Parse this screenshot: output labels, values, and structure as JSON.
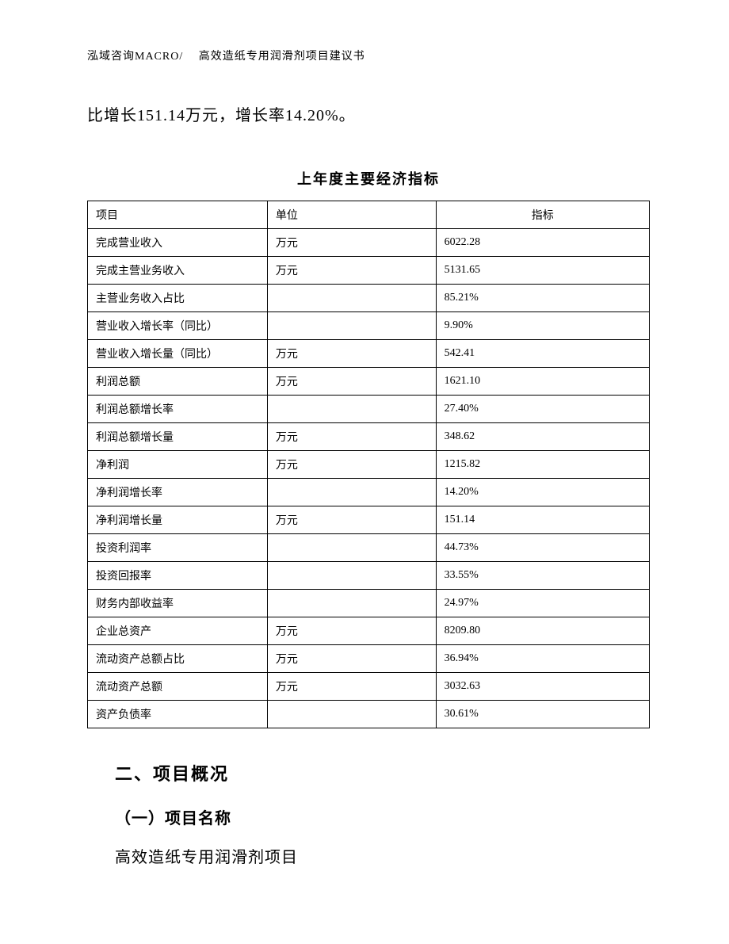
{
  "header": "泓域咨询MACRO/　 高效造纸专用润滑剂项目建议书",
  "intro_text": "比增长151.14万元，增长率14.20%。",
  "table": {
    "title": "上年度主要经济指标",
    "columns": [
      "项目",
      "单位",
      "指标"
    ],
    "rows": [
      [
        "完成营业收入",
        "万元",
        "6022.28"
      ],
      [
        "完成主营业务收入",
        "万元",
        "5131.65"
      ],
      [
        "主营业务收入占比",
        "",
        "85.21%"
      ],
      [
        "营业收入增长率（同比）",
        "",
        "9.90%"
      ],
      [
        "营业收入增长量（同比）",
        "万元",
        "542.41"
      ],
      [
        "利润总额",
        "万元",
        "1621.10"
      ],
      [
        "利润总额增长率",
        "",
        "27.40%"
      ],
      [
        "利润总额增长量",
        "万元",
        "348.62"
      ],
      [
        "净利润",
        "万元",
        "1215.82"
      ],
      [
        "净利润增长率",
        "",
        "14.20%"
      ],
      [
        "净利润增长量",
        "万元",
        "151.14"
      ],
      [
        "投资利润率",
        "",
        "44.73%"
      ],
      [
        "投资回报率",
        "",
        "33.55%"
      ],
      [
        "财务内部收益率",
        "",
        "24.97%"
      ],
      [
        "企业总资产",
        "万元",
        "8209.80"
      ],
      [
        "流动资产总额占比",
        "万元",
        "36.94%"
      ],
      [
        "流动资产总额",
        "万元",
        "3032.63"
      ],
      [
        "资产负债率",
        "",
        "30.61%"
      ]
    ]
  },
  "section": {
    "title": "二、项目概况",
    "subsection_title": "（一）项目名称",
    "body": "高效造纸专用润滑剂项目"
  }
}
